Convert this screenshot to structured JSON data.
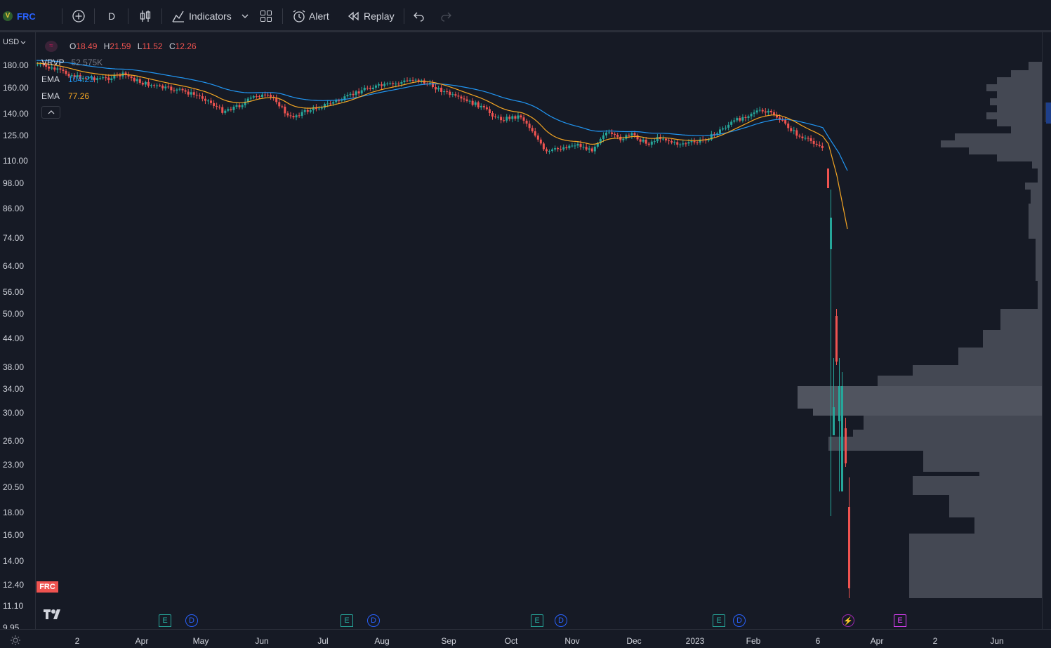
{
  "toolbar": {
    "symbol": "FRC",
    "interval": "D",
    "indicators_label": "Indicators",
    "alert_label": "Alert",
    "replay_label": "Replay"
  },
  "currency": "USD",
  "ohlc": {
    "o_label": "O",
    "o": "18.49",
    "h_label": "H",
    "h": "21.59",
    "l_label": "L",
    "l": "11.52",
    "c_label": "C",
    "c": "12.26"
  },
  "legend": {
    "vrvp_label": "VRVP",
    "vrvp_value": "52.575K",
    "ema1_label": "EMA",
    "ema1_value": "104.23",
    "ema2_label": "EMA",
    "ema2_value": "77.26"
  },
  "price_tag": "FRC",
  "y_ticks": [
    "180.00",
    "160.00",
    "140.00",
    "125.00",
    "110.00",
    "98.00",
    "86.00",
    "74.00",
    "64.00",
    "56.00",
    "50.00",
    "44.00",
    "38.00",
    "34.00",
    "30.00",
    "26.00",
    "23.00",
    "20.50",
    "18.00",
    "16.00",
    "14.00",
    "12.40",
    "11.10",
    "9.95"
  ],
  "x_ticks": [
    "2",
    "Apr",
    "May",
    "Jun",
    "Jul",
    "Aug",
    "Sep",
    "Oct",
    "Nov",
    "Dec",
    "2023",
    "Feb",
    "6",
    "Apr",
    "2",
    "Jun"
  ],
  "events": [
    {
      "type": "E"
    },
    {
      "type": "D"
    },
    {
      "type": "E"
    },
    {
      "type": "D"
    },
    {
      "type": "E"
    },
    {
      "type": "D"
    },
    {
      "type": "E"
    },
    {
      "type": "D"
    },
    {
      "type": "⚡"
    },
    {
      "type": "E"
    }
  ],
  "colors": {
    "up": "#26a69a",
    "down": "#ef5350",
    "ema_fast": "#f5a623",
    "ema_slow": "#2196f3",
    "volume_profile": "#4a4e59",
    "background": "#161a25"
  }
}
